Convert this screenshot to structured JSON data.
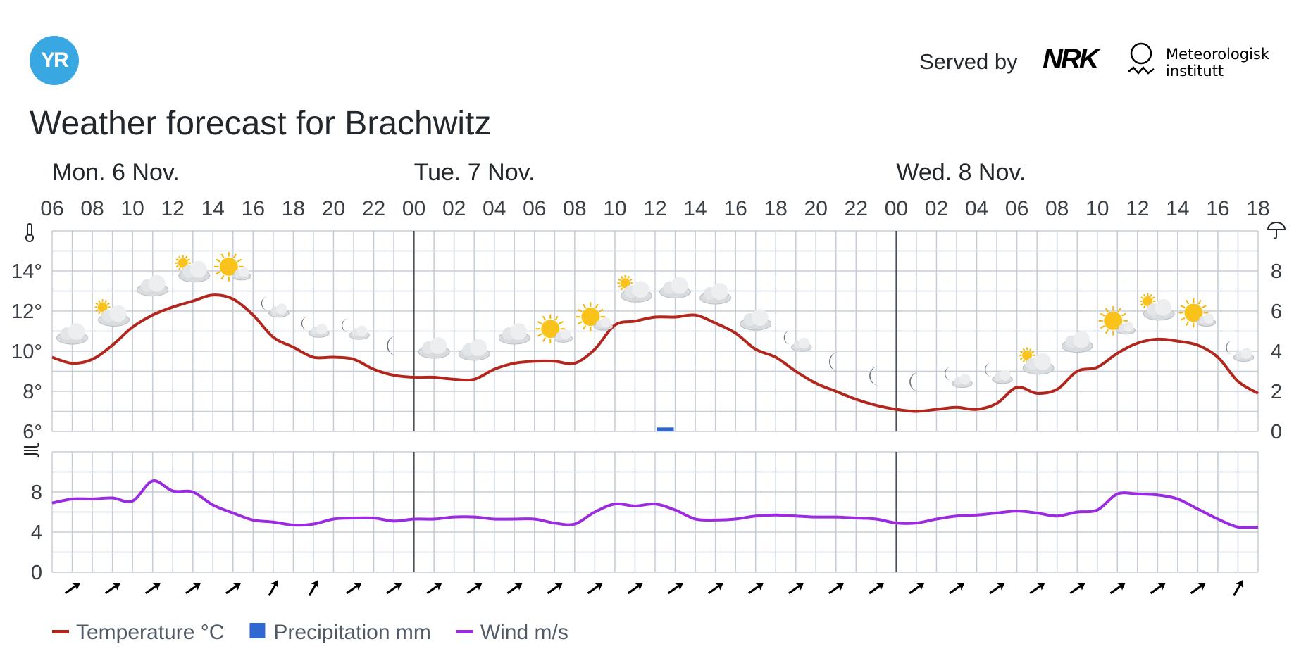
{
  "header": {
    "logo_text": "YR",
    "served_by": "Served by",
    "nrk_logo": "NRK",
    "met_line1": "Meteorologisk",
    "met_line2": "institutt"
  },
  "title": "Weather forecast for Brachwitz",
  "chart_data": {
    "type": "line",
    "days": [
      {
        "label": "Mon. 6 Nov.",
        "start_hour_index": 0
      },
      {
        "label": "Tue. 7 Nov.",
        "start_hour_index": 18
      },
      {
        "label": "Wed. 8 Nov.",
        "start_hour_index": 42
      }
    ],
    "hour_ticks": [
      "06",
      "08",
      "10",
      "12",
      "14",
      "16",
      "18",
      "20",
      "22",
      "00",
      "02",
      "04",
      "06",
      "08",
      "10",
      "12",
      "14",
      "16",
      "18",
      "20",
      "22",
      "00",
      "02",
      "04",
      "06",
      "08",
      "10",
      "12",
      "14",
      "16",
      "18"
    ],
    "hours_count": 60,
    "temperature": {
      "name": "Temperature °C",
      "unit": "°C",
      "color": "#b3261e",
      "ylim": [
        6,
        16
      ],
      "yticks": [
        6,
        8,
        10,
        12,
        14
      ],
      "x": [
        0,
        1,
        2,
        3,
        4,
        5,
        6,
        7,
        8,
        9,
        10,
        11,
        12,
        13,
        14,
        15,
        16,
        17,
        18,
        19,
        20,
        21,
        22,
        23,
        24,
        25,
        26,
        27,
        28,
        29,
        30,
        31,
        32,
        33,
        34,
        35,
        36,
        37,
        38,
        39,
        40,
        41,
        42,
        43,
        44,
        45,
        46,
        47,
        48,
        49,
        50,
        51,
        52,
        53,
        54,
        55,
        56,
        57,
        58,
        59,
        60
      ],
      "values": [
        9.7,
        9.4,
        9.6,
        10.3,
        11.2,
        11.8,
        12.2,
        12.5,
        12.8,
        12.6,
        11.8,
        10.7,
        10.2,
        9.7,
        9.7,
        9.6,
        9.1,
        8.8,
        8.7,
        8.7,
        8.6,
        8.6,
        9.1,
        9.4,
        9.5,
        9.5,
        9.4,
        10.1,
        11.3,
        11.5,
        11.7,
        11.7,
        11.8,
        11.4,
        10.9,
        10.1,
        9.7,
        9.0,
        8.4,
        8.0,
        7.6,
        7.3,
        7.1,
        7.0,
        7.1,
        7.2,
        7.1,
        7.4,
        8.2,
        7.9,
        8.1,
        9.0,
        9.2,
        9.9,
        10.4,
        10.6,
        10.5,
        10.3,
        9.7,
        8.5,
        7.9
      ]
    },
    "precipitation": {
      "name": "Precipitation mm",
      "unit": "mm",
      "color": "#3068d1",
      "ylim": [
        0,
        10
      ],
      "yticks": [
        0,
        2,
        4,
        6,
        8
      ],
      "bars": [
        {
          "hour_index": 30,
          "value": 0.2
        }
      ]
    },
    "wind": {
      "name": "Wind m/s",
      "unit": "m/s",
      "color": "#9b2be0",
      "ylim": [
        0,
        12
      ],
      "yticks": [
        0,
        4,
        8
      ],
      "values": [
        6.9,
        7.3,
        7.3,
        7.4,
        7.1,
        9.1,
        8.1,
        8.0,
        6.7,
        5.9,
        5.2,
        5.0,
        4.7,
        4.8,
        5.3,
        5.4,
        5.4,
        5.1,
        5.3,
        5.3,
        5.5,
        5.5,
        5.3,
        5.3,
        5.3,
        4.9,
        4.8,
        6.0,
        6.8,
        6.6,
        6.8,
        6.2,
        5.3,
        5.2,
        5.3,
        5.6,
        5.7,
        5.6,
        5.5,
        5.5,
        5.4,
        5.3,
        4.9,
        4.9,
        5.3,
        5.6,
        5.7,
        5.9,
        6.1,
        5.9,
        5.6,
        6.0,
        6.2,
        7.8,
        7.8,
        7.7,
        7.3,
        6.3,
        5.3,
        4.5,
        4.5
      ]
    },
    "weather_symbols": [
      "partly-cloudy-icon",
      "partly-cloudy-day-icon",
      "cloudy-icon",
      "partly-cloudy-day-icon",
      "partly-sunny-icon",
      "partly-cloudy-night-icon",
      "partly-cloudy-night-icon",
      "partly-cloudy-night-icon",
      "clear-night-icon",
      "cloudy-icon",
      "cloudy-icon",
      "cloudy-icon",
      "partly-sunny-icon",
      "partly-sunny-icon",
      "partly-cloudy-day-icon",
      "cloudy-icon",
      "cloudy-icon",
      "cloudy-icon",
      "partly-cloudy-night-icon",
      "clear-night-icon",
      "clear-night-icon",
      "clear-night-icon",
      "partly-cloudy-night-icon",
      "partly-cloudy-night-icon",
      "partly-cloudy-day-icon",
      "cloudy-icon",
      "partly-sunny-icon",
      "partly-cloudy-day-icon",
      "partly-sunny-icon",
      "partly-cloudy-night-icon"
    ],
    "wind_arrows": [
      "NE",
      "NE",
      "NE",
      "NE",
      "NE",
      "NNE",
      "NNE",
      "NE",
      "NE",
      "NE",
      "NE",
      "NE",
      "NE",
      "NE",
      "NE",
      "NE",
      "NE",
      "NE",
      "NE",
      "NE",
      "NE",
      "NE",
      "NE",
      "NE",
      "NE",
      "NE",
      "NE",
      "NE",
      "NE",
      "NNE"
    ],
    "legend": [
      {
        "label": "Temperature °C",
        "color": "#b3261e",
        "shape": "line"
      },
      {
        "label": "Precipitation mm",
        "color": "#3068d1",
        "shape": "square"
      },
      {
        "label": "Wind m/s",
        "color": "#9b2be0",
        "shape": "line"
      }
    ],
    "grid": true
  }
}
